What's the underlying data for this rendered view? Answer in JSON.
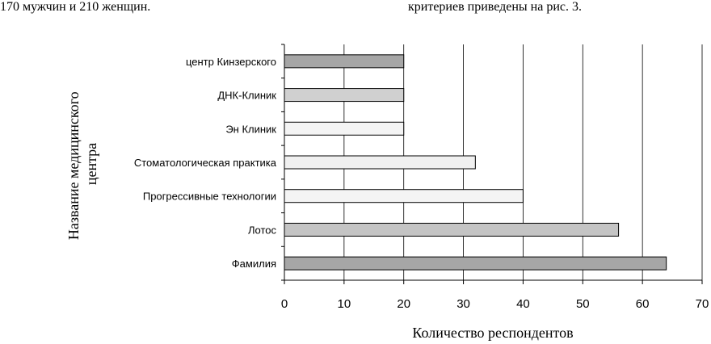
{
  "page": {
    "top_left_text": "170 мужчин и 210 женщин.",
    "top_right_text": "критериев приведены на рис. 3."
  },
  "chart_data": {
    "type": "bar",
    "orientation": "horizontal",
    "categories": [
      "центр Кинзерского",
      "ДНК-Клиник",
      "Эн Клиник",
      "Стоматологическая практика",
      "Прогрессивные технологии",
      "Лотос",
      "Фамилия"
    ],
    "values": [
      20,
      20,
      20,
      32,
      40,
      56,
      64
    ],
    "bar_colors": [
      "#a6a6a6",
      "#d0d0d0",
      "#f4f4f4",
      "#f0f0f0",
      "#f4f4f4",
      "#c4c4c4",
      "#a6a6a6"
    ],
    "xlabel": "Количество респондентов",
    "ylabel_lines": [
      "Название медицинского",
      "центра"
    ],
    "xlim": [
      0,
      70
    ],
    "xticks": [
      0,
      10,
      20,
      30,
      40,
      50,
      60,
      70
    ],
    "grid": "vertical"
  }
}
